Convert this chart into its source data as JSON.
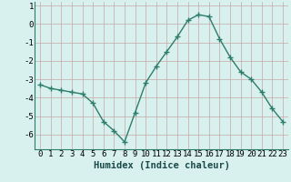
{
  "x": [
    0,
    1,
    2,
    3,
    4,
    5,
    6,
    7,
    8,
    9,
    10,
    11,
    12,
    13,
    14,
    15,
    16,
    17,
    18,
    19,
    20,
    21,
    22,
    23
  ],
  "y": [
    -3.3,
    -3.5,
    -3.6,
    -3.7,
    -3.8,
    -4.3,
    -5.3,
    -5.8,
    -6.4,
    -4.8,
    -3.2,
    -2.3,
    -1.5,
    -0.7,
    0.2,
    0.5,
    0.4,
    -0.8,
    -1.8,
    -2.6,
    -3.0,
    -3.7,
    -4.6,
    -5.3
  ],
  "line_color": "#2e7d6b",
  "marker": "+",
  "marker_size": 4.0,
  "bg_color": "#d8f0ee",
  "grid_color": "#c8a8a8",
  "xlabel": "Humidex (Indice chaleur)",
  "ylim": [
    -6.8,
    1.2
  ],
  "xlim": [
    -0.5,
    23.5
  ],
  "yticks": [
    1,
    0,
    -1,
    -2,
    -3,
    -4,
    -5,
    -6
  ],
  "xtick_labels": [
    "0",
    "1",
    "2",
    "3",
    "4",
    "5",
    "6",
    "7",
    "8",
    "9",
    "10",
    "11",
    "12",
    "13",
    "14",
    "15",
    "16",
    "17",
    "18",
    "19",
    "20",
    "21",
    "22",
    "23"
  ],
  "xlabel_fontsize": 7.5,
  "tick_fontsize": 6.5,
  "line_width": 1.0,
  "marker_lw": 1.0
}
